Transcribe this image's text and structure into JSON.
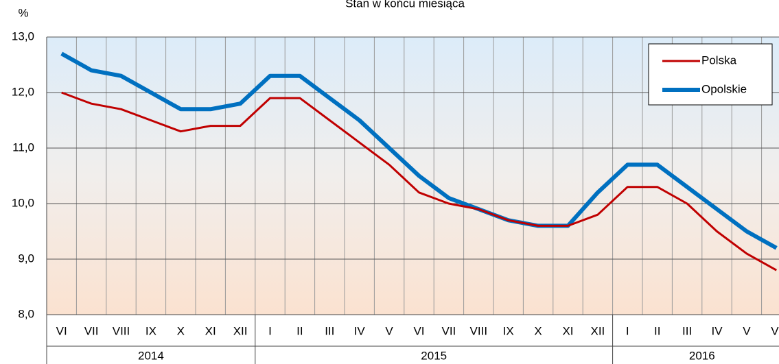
{
  "chart_data": {
    "type": "line",
    "title": "Stan w końcu miesiąca",
    "y_label": "%",
    "categories": [
      "VI",
      "VII",
      "VIII",
      "IX",
      "X",
      "XI",
      "XII",
      "I",
      "II",
      "III",
      "IV",
      "V",
      "VI",
      "VII",
      "VIII",
      "IX",
      "X",
      "XI",
      "XII",
      "I",
      "II",
      "III",
      "IV",
      "V",
      "VI"
    ],
    "groups": [
      "2014",
      "2015",
      "2016"
    ],
    "series": [
      {
        "name": "Polska",
        "color": "#c00000",
        "values": [
          12.0,
          11.8,
          11.7,
          11.5,
          11.3,
          11.4,
          11.4,
          11.9,
          11.9,
          11.5,
          11.1,
          10.7,
          10.2,
          10.0,
          9.9,
          9.7,
          9.6,
          9.6,
          9.8,
          10.3,
          10.3,
          10.0,
          9.5,
          9.1,
          8.8
        ]
      },
      {
        "name": "Opolskie",
        "color": "#0070c0",
        "values": [
          12.7,
          12.4,
          12.3,
          12.0,
          11.7,
          11.7,
          11.8,
          12.3,
          12.3,
          11.9,
          11.5,
          11.0,
          10.5,
          10.1,
          9.9,
          9.7,
          9.6,
          9.6,
          10.2,
          10.7,
          10.7,
          10.3,
          9.9,
          9.5,
          9.2
        ]
      }
    ],
    "ylim": [
      8,
      13
    ],
    "yticks": [
      {
        "value": 8,
        "label": "8,0"
      },
      {
        "value": 9,
        "label": "9,0"
      },
      {
        "value": 10,
        "label": "10,0"
      },
      {
        "value": 11,
        "label": "11,0"
      },
      {
        "value": 12,
        "label": "12,0"
      },
      {
        "value": 13,
        "label": "13,0"
      }
    ],
    "grid": true,
    "legend": "top-right"
  }
}
